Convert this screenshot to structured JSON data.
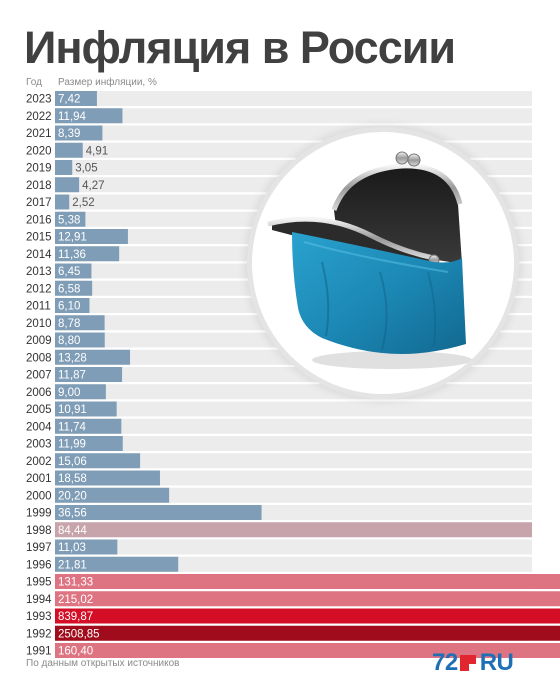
{
  "title": "Инфляция в России",
  "columns": {
    "year": "Год",
    "value": "Размер инфляции, %"
  },
  "footer": "По данным открытых источников",
  "brand": {
    "number": "72",
    "suffix": "RU"
  },
  "colors": {
    "normal": "#7f9db6",
    "high": "#c7a4ab",
    "very_high": "#de7482",
    "extreme": "#d40e26",
    "peak": "#a10c1c",
    "track": "#ececec",
    "purse": "#1d8db9"
  },
  "chart_data": {
    "type": "bar",
    "orientation": "horizontal",
    "categories": [
      "2023",
      "2022",
      "2021",
      "2020",
      "2019",
      "2018",
      "2017",
      "2016",
      "2015",
      "2014",
      "2013",
      "2012",
      "2011",
      "2010",
      "2009",
      "2008",
      "2007",
      "2006",
      "2005",
      "2004",
      "2003",
      "2002",
      "2001",
      "2000",
      "1999",
      "1998",
      "1997",
      "1996",
      "1995",
      "1994",
      "1993",
      "1992",
      "1991"
    ],
    "values": [
      7.42,
      11.94,
      8.39,
      4.91,
      3.05,
      4.27,
      2.52,
      5.38,
      12.91,
      11.36,
      6.45,
      6.58,
      6.1,
      8.78,
      8.8,
      13.28,
      11.87,
      9.0,
      10.91,
      11.74,
      11.99,
      15.06,
      18.58,
      20.2,
      36.56,
      84.44,
      11.03,
      21.81,
      131.33,
      215.02,
      839.87,
      2508.85,
      160.4
    ],
    "labels": [
      "7,42",
      "11,94",
      "8,39",
      "4,91",
      "3,05",
      "4,27",
      "2,52",
      "5,38",
      "12,91",
      "11,36",
      "6,45",
      "6,58",
      "6,10",
      "8,78",
      "8,80",
      "13,28",
      "11,87",
      "9,00",
      "10,91",
      "11,74",
      "11,99",
      "15,06",
      "18,58",
      "20,20",
      "36,56",
      "84,44",
      "11,03",
      "21,81",
      "131,33",
      "215,02",
      "839,87",
      "2508,85",
      "160,40"
    ],
    "xlabel": "Размер инфляции, %",
    "ylabel": "Год",
    "grid": false
  }
}
